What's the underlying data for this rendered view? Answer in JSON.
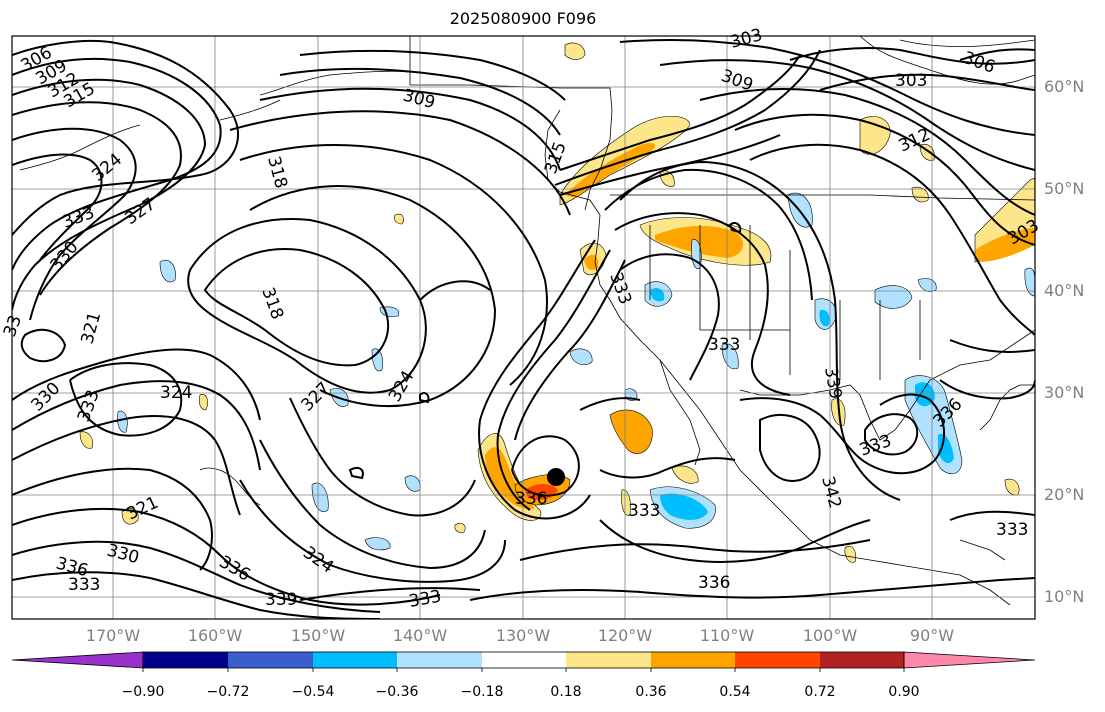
{
  "title": "2025080900 F096",
  "latitude_labels": [
    {
      "text": "60°N"
    },
    {
      "text": "50°N"
    },
    {
      "text": "40°N"
    },
    {
      "text": "30°N"
    },
    {
      "text": "20°N"
    },
    {
      "text": "10°N"
    }
  ],
  "longitude_labels": [
    {
      "text": "170°W"
    },
    {
      "text": "160°W"
    },
    {
      "text": "150°W"
    },
    {
      "text": "140°W"
    },
    {
      "text": "130°W"
    },
    {
      "text": "120°W"
    },
    {
      "text": "110°W"
    },
    {
      "text": "100°W"
    },
    {
      "text": "90°W"
    }
  ],
  "contour_labels": [
    {
      "text": "306"
    },
    {
      "text": "309"
    },
    {
      "text": "312"
    },
    {
      "text": "315"
    },
    {
      "text": "318"
    },
    {
      "text": "324"
    },
    {
      "text": "327"
    },
    {
      "text": "333"
    },
    {
      "text": "330"
    },
    {
      "text": "321"
    },
    {
      "text": "318"
    },
    {
      "text": "324"
    },
    {
      "text": "327"
    },
    {
      "text": "324"
    },
    {
      "text": "333"
    },
    {
      "text": "330"
    },
    {
      "text": "321"
    },
    {
      "text": "336"
    },
    {
      "text": "330"
    },
    {
      "text": "333"
    },
    {
      "text": "336"
    },
    {
      "text": "324"
    },
    {
      "text": "339"
    },
    {
      "text": "333"
    },
    {
      "text": "309"
    },
    {
      "text": "315"
    },
    {
      "text": "333"
    },
    {
      "text": "336"
    },
    {
      "text": "333"
    },
    {
      "text": "336"
    },
    {
      "text": "333"
    },
    {
      "text": "339"
    },
    {
      "text": "342"
    },
    {
      "text": "333"
    },
    {
      "text": "336"
    },
    {
      "text": "333"
    },
    {
      "text": "309"
    },
    {
      "text": "303"
    },
    {
      "text": "306"
    },
    {
      "text": "312"
    },
    {
      "text": "303"
    },
    {
      "text": "303"
    },
    {
      "text": "33"
    }
  ],
  "colorbar": {
    "ticks": [
      "−0.90",
      "−0.72",
      "−0.54",
      "−0.36",
      "−0.18",
      "0.18",
      "0.36",
      "0.54",
      "0.72",
      "0.90"
    ],
    "colors": [
      "#9932cc",
      "#00008b",
      "#3a5fcd",
      "#00bfff",
      "#b0e2ff",
      "#ffffff",
      "#fde68a",
      "#ffa500",
      "#ff4500",
      "#b22222",
      "#ff88aa"
    ]
  },
  "marker": {
    "type": "black-dot"
  }
}
